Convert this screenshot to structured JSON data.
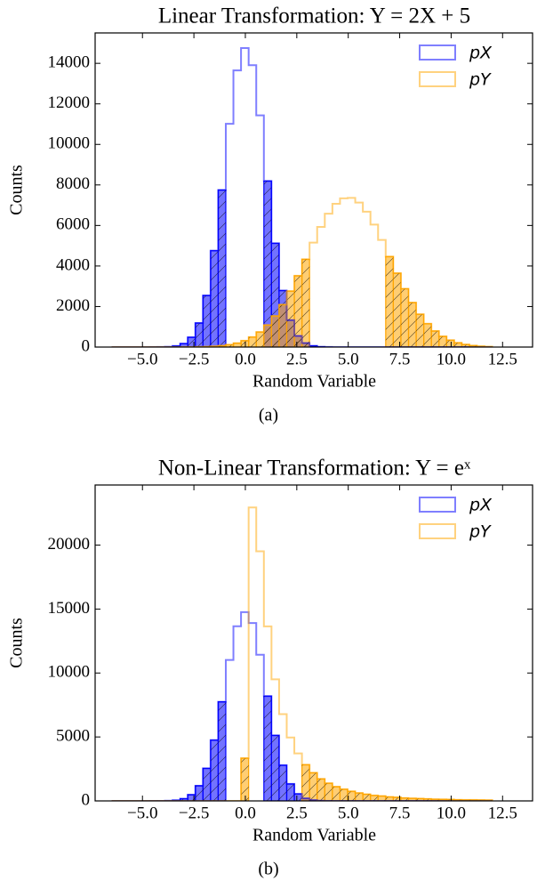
{
  "chart_data": [
    {
      "type": "histogram",
      "title": "Linear Transformation: Y = 2X + 5",
      "xlabel": "Random Variable",
      "ylabel": "Counts",
      "caption": "(a)",
      "xlim": [
        -7.3,
        14.0
      ],
      "ylim": [
        0,
        15500
      ],
      "xticks": [
        {
          "value": -5,
          "label": "−5.0"
        },
        {
          "value": -2.5,
          "label": "−2.5"
        },
        {
          "value": 0,
          "label": "0.0"
        },
        {
          "value": 2.5,
          "label": "2.5"
        },
        {
          "value": 5,
          "label": "5.0"
        },
        {
          "value": 7.5,
          "label": "7.5"
        },
        {
          "value": 10,
          "label": "10.0"
        },
        {
          "value": 12.5,
          "label": "12.5"
        }
      ],
      "yticks": [
        0,
        2000,
        4000,
        6000,
        8000,
        10000,
        12000,
        14000
      ],
      "legend": "upper right",
      "bins": [
        -6.5,
        -6.13,
        -5.76,
        -5.39,
        -5.02,
        -4.65,
        -4.28,
        -3.91,
        -3.54,
        -3.17,
        -2.8,
        -2.43,
        -2.06,
        -1.69,
        -1.32,
        -0.95,
        -0.58,
        -0.21,
        0.16,
        0.53,
        0.9,
        1.27,
        1.64,
        2.01,
        2.38,
        2.75,
        3.12,
        3.49,
        3.86,
        4.23,
        4.6,
        4.97,
        5.34,
        5.71,
        6.08,
        6.45,
        6.82,
        7.19,
        7.56,
        7.93,
        8.3,
        8.67,
        9.04,
        9.41,
        9.78,
        10.15,
        10.52,
        10.89,
        11.26,
        11.63,
        12.0
      ],
      "series": [
        {
          "name": "pX",
          "color": "#0000ff",
          "values": [
            0,
            0,
            0,
            0,
            0,
            1,
            3,
            14,
            53,
            172,
            483,
            1187,
            2545,
            4756,
            7750,
            11015,
            13653,
            14755,
            13907,
            11432,
            8193,
            5122,
            2790,
            1327,
            550,
            199,
            63,
            17,
            4,
            0,
            0,
            0,
            0,
            0,
            0,
            0,
            0,
            0,
            0,
            0,
            0,
            0,
            0,
            0,
            0,
            0,
            0,
            0,
            0,
            0
          ],
          "filled": [
            true,
            true,
            true,
            true,
            true,
            true,
            true,
            true,
            true,
            true,
            true,
            true,
            true,
            true,
            true,
            false,
            false,
            false,
            false,
            false,
            true,
            true,
            true,
            true,
            true,
            true,
            true,
            true,
            true,
            true,
            true,
            true,
            true,
            true,
            true,
            true,
            true,
            true,
            true,
            true,
            true,
            true,
            true,
            true,
            true,
            true,
            true,
            true,
            true,
            true
          ]
        },
        {
          "name": "pY",
          "color": "#ffa500",
          "values": [
            0,
            0,
            0,
            0,
            0,
            0,
            0,
            0,
            1,
            3,
            5,
            11,
            20,
            37,
            67,
            116,
            194,
            314,
            492,
            743,
            1086,
            1534,
            2093,
            2760,
            3517,
            4331,
            5153,
            5926,
            6583,
            7071,
            7337,
            7358,
            7130,
            6679,
            6042,
            5284,
            4465,
            3646,
            2878,
            2194,
            1617,
            1152,
            793,
            527,
            339,
            210,
            126,
            73,
            41,
            22
          ],
          "filled": [
            true,
            true,
            true,
            true,
            true,
            true,
            true,
            true,
            true,
            true,
            true,
            true,
            true,
            true,
            true,
            true,
            true,
            true,
            true,
            true,
            true,
            true,
            true,
            true,
            true,
            true,
            false,
            false,
            false,
            false,
            false,
            false,
            false,
            false,
            false,
            false,
            true,
            true,
            true,
            true,
            true,
            true,
            true,
            true,
            true,
            true,
            true,
            true,
            true,
            true
          ]
        }
      ]
    },
    {
      "type": "histogram",
      "title": "Non-Linear Transformation: Y = eˣ",
      "xlabel": "Random Variable",
      "ylabel": "Counts",
      "caption": "(b)",
      "xlim": [
        -7.3,
        14.0
      ],
      "ylim": [
        0,
        24700
      ],
      "xticks": [
        {
          "value": -5,
          "label": "−5.0"
        },
        {
          "value": -2.5,
          "label": "−2.5"
        },
        {
          "value": 0,
          "label": "0.0"
        },
        {
          "value": 2.5,
          "label": "2.5"
        },
        {
          "value": 5,
          "label": "5.0"
        },
        {
          "value": 7.5,
          "label": "7.5"
        },
        {
          "value": 10,
          "label": "10.0"
        },
        {
          "value": 12.5,
          "label": "12.5"
        }
      ],
      "yticks": [
        0,
        5000,
        10000,
        15000,
        20000
      ],
      "legend": "upper right",
      "bins": [
        -6.5,
        -6.13,
        -5.76,
        -5.39,
        -5.02,
        -4.65,
        -4.28,
        -3.91,
        -3.54,
        -3.17,
        -2.8,
        -2.43,
        -2.06,
        -1.69,
        -1.32,
        -0.95,
        -0.58,
        -0.21,
        0.16,
        0.53,
        0.9,
        1.27,
        1.64,
        2.01,
        2.38,
        2.75,
        3.12,
        3.49,
        3.86,
        4.23,
        4.6,
        4.97,
        5.34,
        5.71,
        6.08,
        6.45,
        6.82,
        7.19,
        7.56,
        7.93,
        8.3,
        8.67,
        9.04,
        9.41,
        9.78,
        10.15,
        10.52,
        10.89,
        11.26,
        11.63,
        12.0
      ],
      "series": [
        {
          "name": "pX",
          "color": "#0000ff",
          "values": [
            0,
            0,
            0,
            0,
            0,
            1,
            3,
            14,
            53,
            172,
            483,
            1187,
            2545,
            4756,
            7750,
            11015,
            13653,
            14755,
            13907,
            11432,
            8193,
            5122,
            2790,
            1327,
            550,
            199,
            63,
            17,
            4,
            0,
            0,
            0,
            0,
            0,
            0,
            0,
            0,
            0,
            0,
            0,
            0,
            0,
            0,
            0,
            0,
            0,
            0,
            0,
            0,
            0
          ],
          "filled": [
            true,
            true,
            true,
            true,
            true,
            true,
            true,
            true,
            true,
            true,
            true,
            true,
            true,
            true,
            true,
            false,
            false,
            false,
            false,
            false,
            true,
            true,
            true,
            true,
            true,
            true,
            true,
            true,
            true,
            true,
            true,
            true,
            true,
            true,
            true,
            true,
            true,
            true,
            true,
            true,
            true,
            true,
            true,
            true,
            true,
            true,
            true,
            true,
            true,
            true
          ]
        },
        {
          "name": "pY",
          "color": "#ffa500",
          "values": [
            0,
            0,
            0,
            0,
            0,
            0,
            0,
            0,
            0,
            0,
            0,
            0,
            0,
            0,
            0,
            0,
            0,
            3340,
            22940,
            19520,
            13650,
            9510,
            6780,
            4960,
            3710,
            2830,
            2200,
            1720,
            1380,
            1110,
            910,
            750,
            620,
            520,
            430,
            380,
            310,
            280,
            230,
            200,
            180,
            160,
            130,
            120,
            110,
            90,
            80,
            80,
            70,
            60
          ],
          "filled": [
            false,
            false,
            false,
            false,
            false,
            false,
            false,
            false,
            false,
            false,
            false,
            false,
            false,
            false,
            false,
            false,
            false,
            true,
            false,
            false,
            false,
            false,
            false,
            false,
            false,
            true,
            true,
            true,
            true,
            true,
            true,
            true,
            true,
            true,
            true,
            true,
            true,
            true,
            true,
            true,
            true,
            true,
            true,
            true,
            true,
            true,
            true,
            true,
            true,
            true
          ]
        }
      ]
    }
  ]
}
